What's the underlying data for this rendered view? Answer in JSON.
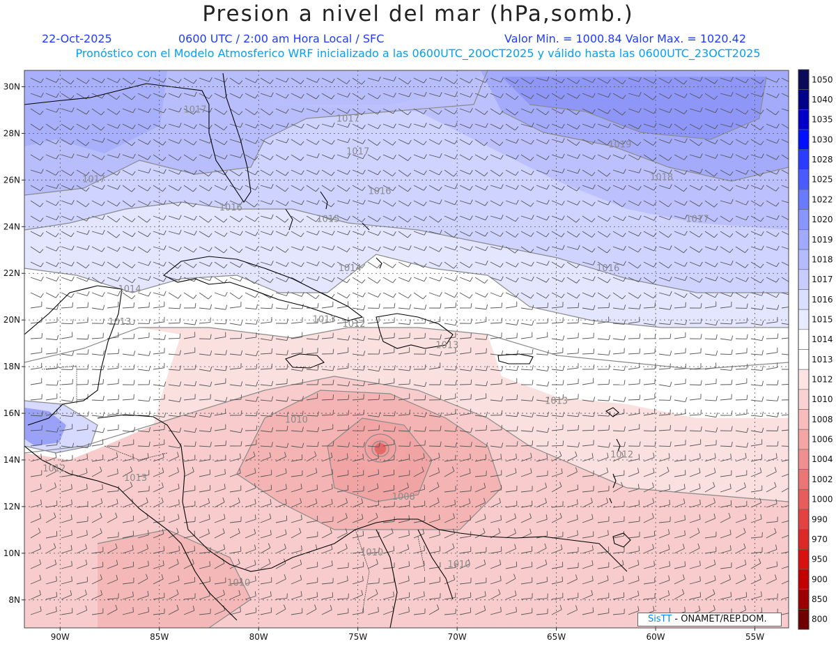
{
  "header": {
    "title": "Presion a nivel del mar (hPa,somb.)",
    "date": "22-Oct-2025",
    "time": "0600 UTC / 2:00 am Hora Local / SFC",
    "minmax": "Valor Min. = 1000.84  Valor Max. = 1020.42",
    "subtitle": "Pronóstico con el Modelo Atmosferico WRF inicializado a las 0600UTC_20OCT2025 y válido hasta las  0600UTC_23OCT2025"
  },
  "axes": {
    "lat_labels": [
      "30N",
      "28N",
      "26N",
      "24N",
      "22N",
      "20N",
      "18N",
      "16N",
      "14N",
      "12N",
      "10N",
      "8N"
    ],
    "lat_values": [
      30,
      28,
      26,
      24,
      22,
      20,
      18,
      16,
      14,
      12,
      10,
      8
    ],
    "lon_labels": [
      "90W",
      "85W",
      "80W",
      "75W",
      "70W",
      "65W",
      "60W",
      "55W"
    ],
    "lon_values": [
      -90,
      -85,
      -80,
      -75,
      -70,
      -65,
      -60,
      -55
    ],
    "lon_range": [
      -91.8,
      -53.3
    ],
    "lat_range": [
      6.8,
      30.7
    ]
  },
  "legend": {
    "levels": [
      "1050",
      "1040",
      "1035",
      "1030",
      "1028",
      "1025",
      "1022",
      "1020",
      "1019",
      "1018",
      "1017",
      "1016",
      "1015",
      "1014",
      "1013",
      "1012",
      "1010",
      "1008",
      "1006",
      "1004",
      "1002",
      "1000",
      "990",
      "970",
      "950",
      "900",
      "850",
      "800"
    ],
    "colors": [
      "#0a0a5a",
      "#00008b",
      "#0000c8",
      "#0010ff",
      "#2a3cff",
      "#4a5cff",
      "#6a7aff",
      "#8a96ff",
      "#a0aaff",
      "#b4bcff",
      "#c8cdff",
      "#dadeff",
      "#e8eaff",
      "#ffffff",
      "#ffffff",
      "#fde4e4",
      "#fbd2d2",
      "#f8bcbc",
      "#f4a6a6",
      "#f08f8f",
      "#ec7676",
      "#e85c5c",
      "#e34242",
      "#dd2828",
      "#d81010",
      "#c20000",
      "#9a0000",
      "#6e0000"
    ]
  },
  "isobar_labels": [
    {
      "text": "1017",
      "lon": -83.2,
      "lat": 28.9
    },
    {
      "text": "1017",
      "lon": -75.5,
      "lat": 28.5
    },
    {
      "text": "1017",
      "lon": -75.0,
      "lat": 27.1
    },
    {
      "text": "1017",
      "lon": -88.3,
      "lat": 25.9
    },
    {
      "text": "1019",
      "lon": -61.8,
      "lat": 27.4
    },
    {
      "text": "1018",
      "lon": -59.7,
      "lat": 26.0
    },
    {
      "text": "1016",
      "lon": -73.9,
      "lat": 25.4
    },
    {
      "text": "1016",
      "lon": -81.4,
      "lat": 24.7
    },
    {
      "text": "1015",
      "lon": -76.5,
      "lat": 24.2
    },
    {
      "text": "1017",
      "lon": -57.9,
      "lat": 24.2
    },
    {
      "text": "1014",
      "lon": -75.4,
      "lat": 22.1
    },
    {
      "text": "1016",
      "lon": -62.4,
      "lat": 22.1
    },
    {
      "text": "1014",
      "lon": -86.5,
      "lat": 21.2
    },
    {
      "text": "1013",
      "lon": -87.0,
      "lat": 19.8
    },
    {
      "text": "1013",
      "lon": -76.7,
      "lat": 19.9
    },
    {
      "text": "1012",
      "lon": -75.2,
      "lat": 19.7
    },
    {
      "text": "1013",
      "lon": -70.5,
      "lat": 18.8
    },
    {
      "text": "1013",
      "lon": -65.0,
      "lat": 16.4
    },
    {
      "text": "1010",
      "lon": -78.1,
      "lat": 15.6
    },
    {
      "text": "1012",
      "lon": -61.7,
      "lat": 14.1
    },
    {
      "text": "1012",
      "lon": -90.3,
      "lat": 13.5
    },
    {
      "text": "1013",
      "lon": -86.2,
      "lat": 13.1
    },
    {
      "text": "1008",
      "lon": -72.7,
      "lat": 12.3
    },
    {
      "text": "1010",
      "lon": -74.3,
      "lat": 9.9
    },
    {
      "text": "1010",
      "lon": -69.9,
      "lat": 9.4
    },
    {
      "text": "1010",
      "lon": -81.0,
      "lat": 8.6
    }
  ],
  "credit": {
    "brand": "SisTT",
    "text": " -  ONAMET/REP.DOM."
  }
}
